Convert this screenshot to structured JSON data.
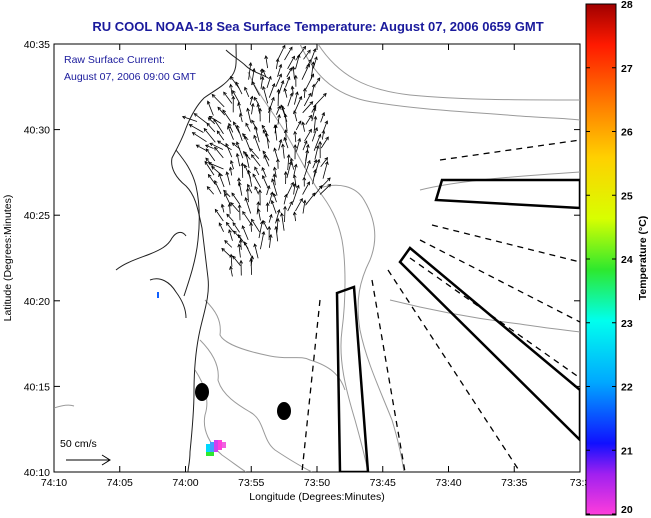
{
  "title": "RU COOL  NOAA-18  Sea Surface Temperature:  August 07, 2006 0659 GMT",
  "inset": {
    "line1": "Raw Surface Current:",
    "line2": "August 07, 2006 09:00 GMT"
  },
  "scale_label": "50 cm/s",
  "x_axis": {
    "label": "Longitude (Degrees:Minutes)",
    "ticks": [
      "74:10",
      "74:05",
      "74:00",
      "73:55",
      "73:50",
      "73:45",
      "73:40",
      "73:35",
      "73:3"
    ]
  },
  "y_axis": {
    "label": "Latitude (Degrees:Minutes)",
    "ticks": [
      "40:10",
      "40:15",
      "40:20",
      "40:25",
      "40:30",
      "40:35"
    ]
  },
  "colorbar": {
    "label": "Temperature (°C)",
    "ticks": [
      "20",
      "21",
      "22",
      "23",
      "24",
      "25",
      "26",
      "27",
      "28"
    ],
    "colors": [
      "#ff3ddb",
      "#a020f0",
      "#1010ff",
      "#00a8ff",
      "#00ffee",
      "#2ee82e",
      "#d8ff00",
      "#ffd000",
      "#ff8000",
      "#ff1a00",
      "#a00000"
    ]
  }
}
